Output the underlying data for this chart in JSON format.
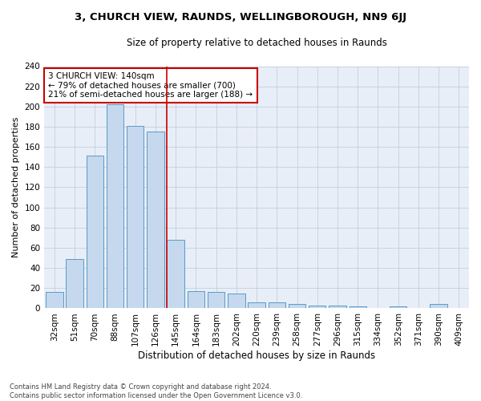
{
  "title1": "3, CHURCH VIEW, RAUNDS, WELLINGBOROUGH, NN9 6JJ",
  "title2": "Size of property relative to detached houses in Raunds",
  "xlabel": "Distribution of detached houses by size in Raunds",
  "ylabel": "Number of detached properties",
  "bar_labels": [
    "32sqm",
    "51sqm",
    "70sqm",
    "88sqm",
    "107sqm",
    "126sqm",
    "145sqm",
    "164sqm",
    "183sqm",
    "202sqm",
    "220sqm",
    "239sqm",
    "258sqm",
    "277sqm",
    "296sqm",
    "315sqm",
    "334sqm",
    "352sqm",
    "371sqm",
    "390sqm",
    "409sqm"
  ],
  "bar_values": [
    16,
    49,
    151,
    202,
    181,
    175,
    68,
    17,
    16,
    15,
    6,
    6,
    4,
    3,
    3,
    2,
    0,
    2,
    0,
    4,
    0
  ],
  "bar_color": "#c5d8ed",
  "bar_edgecolor": "#5a9ac8",
  "annotation_line_index": 6,
  "annotation_text_line1": "3 CHURCH VIEW: 140sqm",
  "annotation_text_line2": "← 79% of detached houses are smaller (700)",
  "annotation_text_line3": "21% of semi-detached houses are larger (188) →",
  "annotation_box_color": "#ffffff",
  "annotation_box_edgecolor": "#cc0000",
  "footer_text": "Contains HM Land Registry data © Crown copyright and database right 2024.\nContains public sector information licensed under the Open Government Licence v3.0.",
  "ylim": [
    0,
    240
  ],
  "background_color": "#ffffff",
  "ax_background_color": "#e8eef7",
  "grid_color": "#c0cfe0",
  "title1_fontsize": 9.5,
  "title2_fontsize": 8.5,
  "xlabel_fontsize": 8.5,
  "ylabel_fontsize": 8.0,
  "tick_fontsize": 7.5,
  "annotation_fontsize": 7.5,
  "footer_fontsize": 6.0
}
